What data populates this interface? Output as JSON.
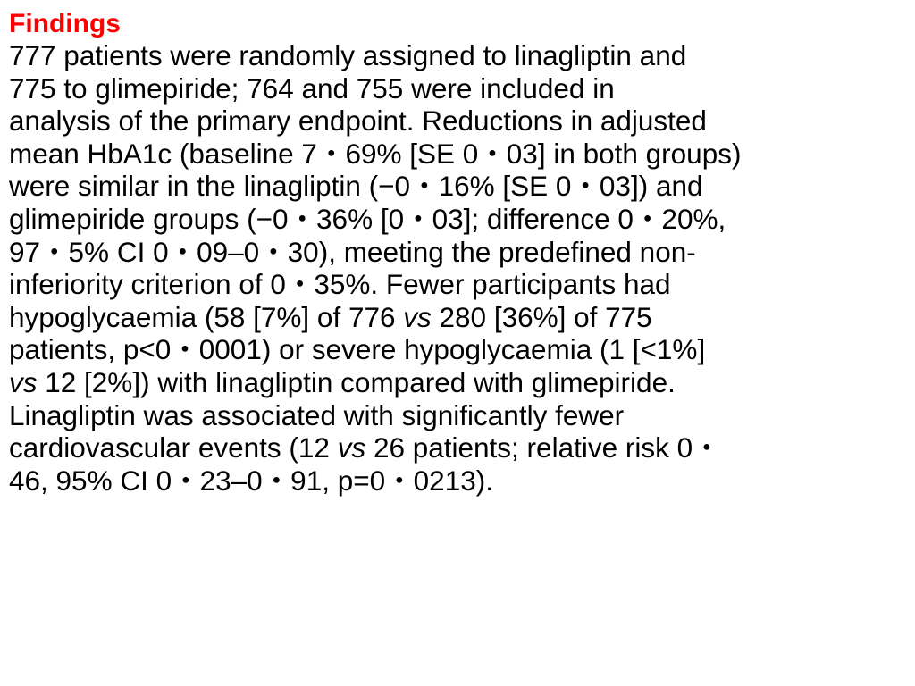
{
  "colors": {
    "heading": "#ff0000",
    "text": "#000000",
    "background": "#ffffff"
  },
  "heading": "Findings",
  "lines": [
    {
      "text": "777 patients were randomly assigned to linagliptin and"
    },
    {
      "text": "775 to glimepiride; 764 and 755 were included in"
    },
    {
      "text": "analysis of the primary endpoint. Reductions in adjusted"
    },
    {
      "text": "mean HbA1c (baseline 7・69% [SE 0・03] in both groups)"
    },
    {
      "text": "were similar in the linagliptin (−0・16% [SE 0・03]) and"
    },
    {
      "text": "glimepiride groups (−0・36% [0・03]; difference 0・20%,"
    },
    {
      "text": "97・5% CI 0・09–0・30), meeting the predefined non-"
    },
    {
      "text": "inferiority criterion of 0・35%. Fewer participants had"
    },
    {
      "a": "hypoglycaemia (58 [7%] of 776 ",
      "i": "vs",
      "b": " 280 [36%] of 775"
    },
    {
      "text": "patients, p<0・0001) or severe hypoglycaemia (1 [<1%]"
    },
    {
      "i": "vs",
      "b": " 12 [2%]) with linagliptin compared with glimepiride."
    },
    {
      "text": "Linagliptin was associated with significantly fewer"
    },
    {
      "a": "cardiovascular events (12 ",
      "i": "vs",
      "b": " 26 patients; relative risk 0・"
    },
    {
      "text": "46, 95% CI 0・23–0・91, p=0・0213)."
    }
  ]
}
